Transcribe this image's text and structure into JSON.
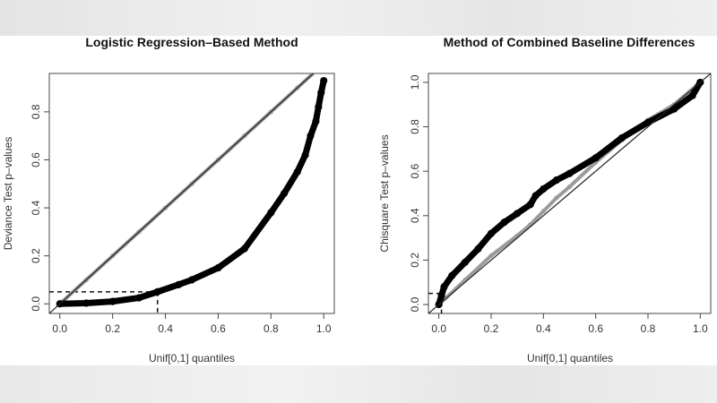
{
  "chart_data": [
    {
      "type": "scatter",
      "title": "Logistic Regression–Based Method",
      "xlabel": "Unif[0,1] quantiles",
      "ylabel": "Deviance Test p–values",
      "xlim": [
        -0.04,
        1.04
      ],
      "ylim": [
        -0.04,
        0.96
      ],
      "xticks": [
        "0.0",
        "0.2",
        "0.4",
        "0.6",
        "0.8",
        "1.0"
      ],
      "yticks": [
        "0.0",
        "0.2",
        "0.4",
        "0.6",
        "0.8"
      ],
      "grid": false,
      "reference_line": "y = x",
      "series": [
        {
          "color": "#9a9a9a",
          "x": [
            0,
            0.1,
            0.2,
            0.3,
            0.4,
            0.5,
            0.6,
            0.7,
            0.8,
            0.9,
            0.97
          ],
          "y": [
            0,
            0.1,
            0.2,
            0.3,
            0.4,
            0.5,
            0.6,
            0.7,
            0.8,
            0.9,
            0.97
          ]
        },
        {
          "color": "#000000",
          "x": [
            0,
            0.1,
            0.2,
            0.3,
            0.37,
            0.45,
            0.5,
            0.6,
            0.7,
            0.8,
            0.85,
            0.9,
            0.93,
            0.95,
            0.97,
            0.98,
            0.99,
            1.0
          ],
          "y": [
            0,
            0.003,
            0.01,
            0.025,
            0.05,
            0.08,
            0.1,
            0.15,
            0.23,
            0.38,
            0.46,
            0.55,
            0.62,
            0.7,
            0.76,
            0.82,
            0.88,
            0.93
          ]
        }
      ],
      "dashed_guides": {
        "y": 0.05,
        "x": 0.37
      }
    },
    {
      "type": "scatter",
      "title": "Method of Combined Baseline Differences",
      "xlabel": "Unif[0,1] quantiles",
      "ylabel": "Chisquare Test p–values",
      "xlim": [
        -0.04,
        1.04
      ],
      "ylim": [
        -0.04,
        1.04
      ],
      "xticks": [
        "0.0",
        "0.2",
        "0.4",
        "0.6",
        "0.8",
        "1.0"
      ],
      "yticks": [
        "0.0",
        "0.2",
        "0.4",
        "0.6",
        "0.8",
        "1.0"
      ],
      "grid": false,
      "reference_line": "y = x",
      "series": [
        {
          "color": "#9a9a9a",
          "x": [
            0,
            0.1,
            0.2,
            0.3,
            0.35,
            0.4,
            0.45,
            0.5,
            0.6,
            0.7,
            0.8,
            0.9,
            1.0
          ],
          "y": [
            0,
            0.11,
            0.22,
            0.31,
            0.36,
            0.42,
            0.48,
            0.53,
            0.64,
            0.74,
            0.83,
            0.9,
            1.0
          ]
        },
        {
          "color": "#000000",
          "x": [
            0,
            0.01,
            0.02,
            0.05,
            0.1,
            0.15,
            0.2,
            0.25,
            0.3,
            0.35,
            0.37,
            0.4,
            0.45,
            0.5,
            0.6,
            0.7,
            0.8,
            0.9,
            0.97,
            1.0
          ],
          "y": [
            0,
            0.04,
            0.08,
            0.13,
            0.19,
            0.25,
            0.32,
            0.37,
            0.41,
            0.45,
            0.49,
            0.52,
            0.56,
            0.59,
            0.66,
            0.75,
            0.82,
            0.88,
            0.94,
            1.0
          ]
        }
      ],
      "dashed_guides": {
        "y": 0.05,
        "x": 0.01
      }
    }
  ]
}
